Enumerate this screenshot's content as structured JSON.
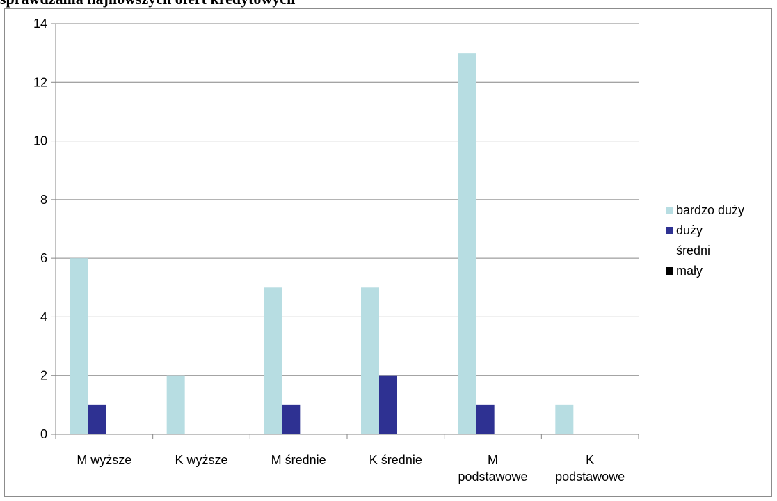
{
  "chart_data": {
    "type": "bar",
    "title": "sprawdzania najnowszych ofert kredytowych",
    "categories": [
      [
        "M wyższe"
      ],
      [
        "K wyższe"
      ],
      [
        "M średnie"
      ],
      [
        "K średnie"
      ],
      [
        "M",
        "podstawowe"
      ],
      [
        "K",
        "podstawowe"
      ]
    ],
    "series": [
      {
        "name": "bardzo duży",
        "color": "#b7dde2",
        "values": [
          6,
          2,
          5,
          5,
          13,
          1
        ]
      },
      {
        "name": "duży",
        "color": "#2e3192",
        "values": [
          1,
          0,
          1,
          2,
          1,
          0
        ]
      },
      {
        "name": "średni",
        "color": "#ffffff",
        "values": [
          0,
          0,
          0,
          0,
          0,
          0
        ]
      },
      {
        "name": "mały",
        "color": "#000000",
        "values": [
          0,
          0,
          0,
          0,
          0,
          0
        ]
      }
    ],
    "ylim": [
      0,
      14
    ],
    "yticks": [
      0,
      2,
      4,
      6,
      8,
      10,
      12,
      14
    ],
    "grid": true,
    "legend_position": "right"
  }
}
